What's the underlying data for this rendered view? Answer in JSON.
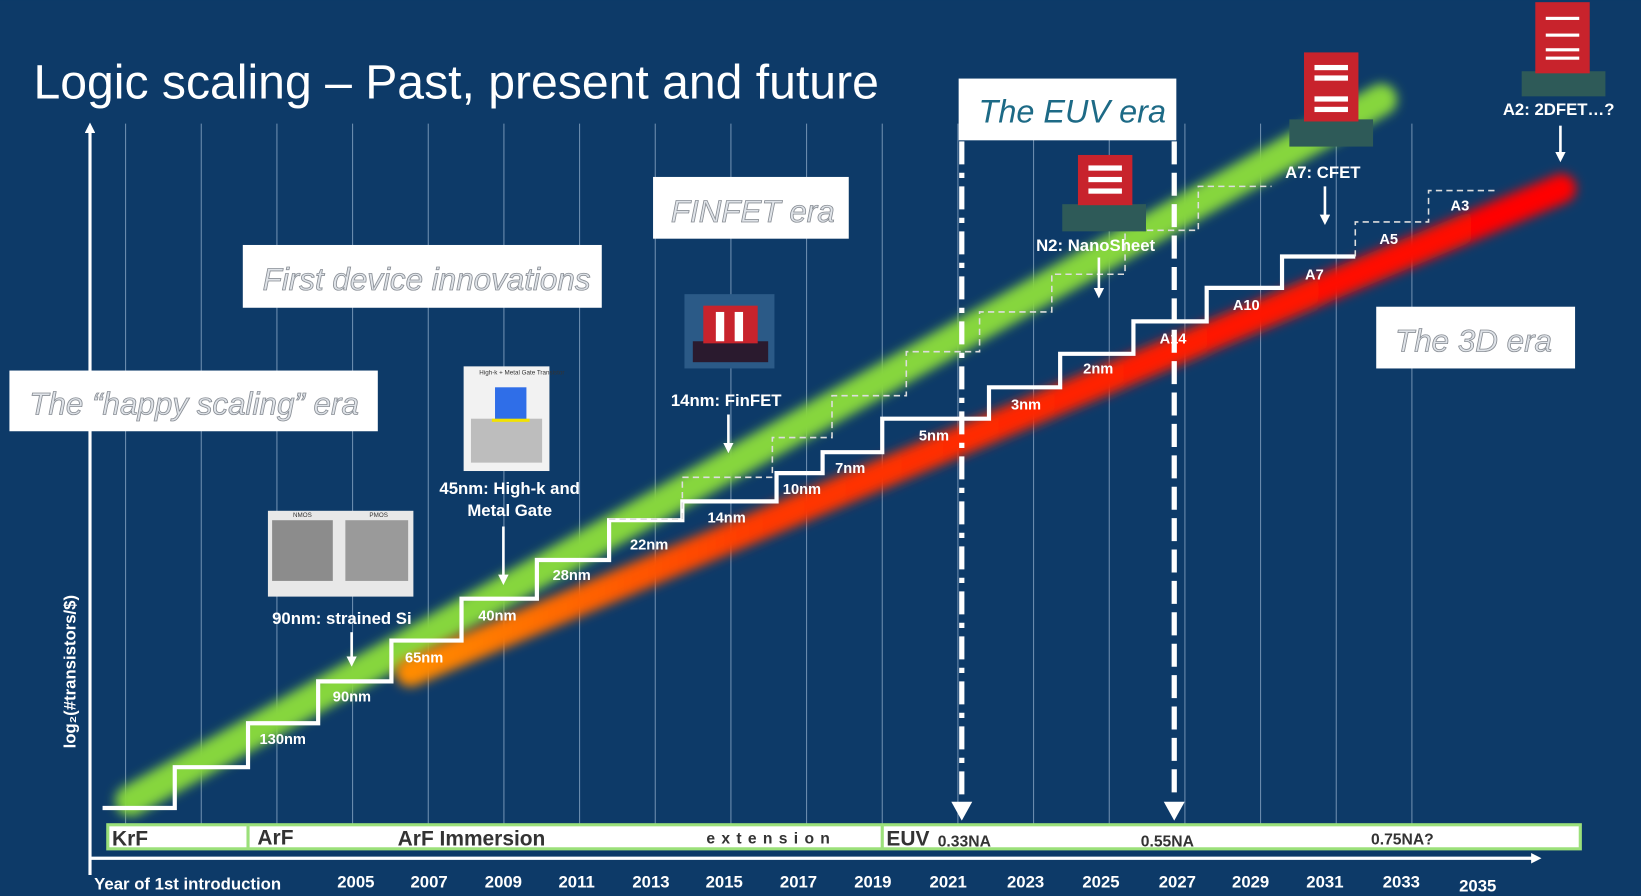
{
  "title": "Logic scaling – Past, present and future",
  "eras": [
    "The “happy scaling” era",
    "First device innovations",
    "FINFET era",
    "The EUV era",
    "The 3D era"
  ],
  "y_axis_label": "log₂(#transistors/$)",
  "x_axis": {
    "label": "Year of 1st introduction",
    "years": [
      "2005",
      "2007",
      "2009",
      "2011",
      "2013",
      "2015",
      "2017",
      "2019",
      "2021",
      "2023",
      "2025",
      "2027",
      "2029",
      "2031",
      "2033",
      "2035"
    ]
  },
  "nodes": [
    "130nm",
    "90nm",
    "65nm",
    "40nm",
    "28nm",
    "22nm",
    "14nm",
    "10nm",
    "7nm",
    "5nm",
    "3nm",
    "2nm",
    "A14",
    "A10",
    "A7",
    "A5",
    "A3"
  ],
  "innovations": [
    "90nm: strained Si",
    "45nm: High-k and Metal Gate",
    "14nm: FinFET",
    "N2: NanoSheet",
    "A7: CFET",
    "A2: 2DFET…?"
  ],
  "insets": {
    "strained_si": [
      "NMOS",
      "PMOS"
    ],
    "high_k": "High-k + Metal Gate Transistor"
  },
  "lithography": [
    "KrF",
    "ArF",
    "ArF Immersion",
    "extension",
    "EUV",
    "0.33NA",
    "0.55NA",
    "0.75NA?"
  ]
}
